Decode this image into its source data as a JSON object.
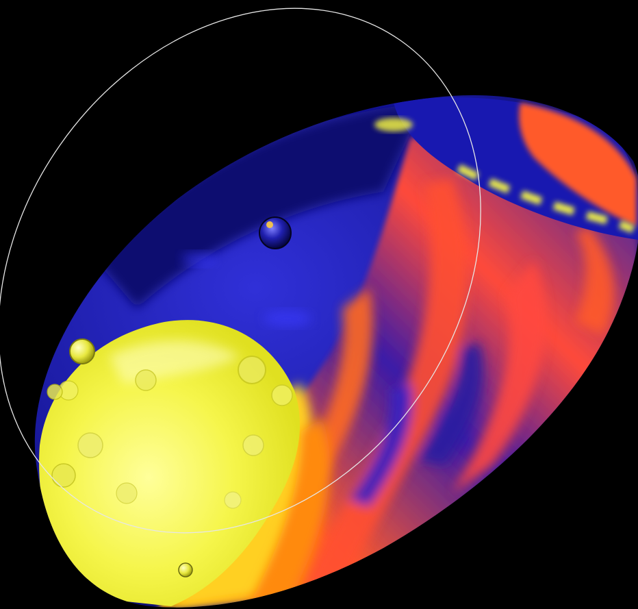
{
  "scene": {
    "description_type": "abstract-3d-render",
    "colors": {
      "background": "#000000",
      "deep_blue": "#10108f",
      "royal_blue": "#2a2ad0",
      "orange_red": "#ff5a2a",
      "hot_orange": "#ff7a1a",
      "yellow": "#ffff3a",
      "pale_yellow": "#f7f79a",
      "outline": "#e6e6e6"
    }
  }
}
